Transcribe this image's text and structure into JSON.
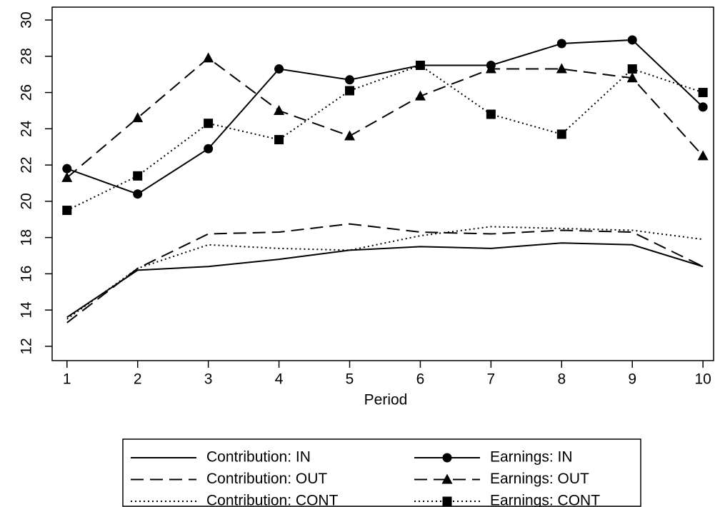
{
  "chart_data": {
    "type": "line",
    "x_label": "Period",
    "x": [
      1,
      2,
      3,
      4,
      5,
      6,
      7,
      8,
      9,
      10
    ],
    "xlim": [
      0.79,
      10.15
    ],
    "xticks": [
      1,
      2,
      3,
      4,
      5,
      6,
      7,
      8,
      9,
      10
    ],
    "ylim": [
      11.21,
      30.71
    ],
    "yticks": [
      12,
      14,
      16,
      18,
      20,
      22,
      24,
      26,
      28,
      30
    ],
    "series": [
      {
        "name": "Contribution: IN",
        "color": "#000000",
        "dash": "solid",
        "marker": "none",
        "values": [
          13.6,
          16.2,
          16.4,
          16.8,
          17.3,
          17.5,
          17.4,
          17.7,
          17.6,
          16.4
        ]
      },
      {
        "name": "Earnings: IN",
        "color": "#000000",
        "dash": "solid",
        "marker": "circle",
        "values": [
          21.8,
          20.4,
          22.9,
          27.3,
          26.7,
          27.5,
          27.5,
          28.7,
          28.9,
          25.2
        ]
      },
      {
        "name": "Contribution: OUT",
        "color": "#000000",
        "dash": "dashed",
        "marker": "none",
        "values": [
          13.3,
          16.3,
          18.2,
          18.3,
          18.75,
          18.3,
          18.2,
          18.4,
          18.3,
          16.4
        ]
      },
      {
        "name": "Earnings: OUT",
        "color": "#000000",
        "dash": "dashed",
        "marker": "triangle",
        "values": [
          21.3,
          24.6,
          27.9,
          25.0,
          23.6,
          25.8,
          27.3,
          27.3,
          26.8,
          22.5
        ]
      },
      {
        "name": "Contribution: CONT",
        "color": "#000000",
        "dash": "dotted",
        "marker": "none",
        "values": [
          13.5,
          16.3,
          17.6,
          17.4,
          17.3,
          18.1,
          18.6,
          18.5,
          18.4,
          17.9
        ]
      },
      {
        "name": "Earnings: CONT",
        "color": "#000000",
        "dash": "dotted",
        "marker": "square",
        "values": [
          19.5,
          21.4,
          24.3,
          23.4,
          26.1,
          27.5,
          24.8,
          23.7,
          27.3,
          26.0
        ]
      }
    ]
  }
}
